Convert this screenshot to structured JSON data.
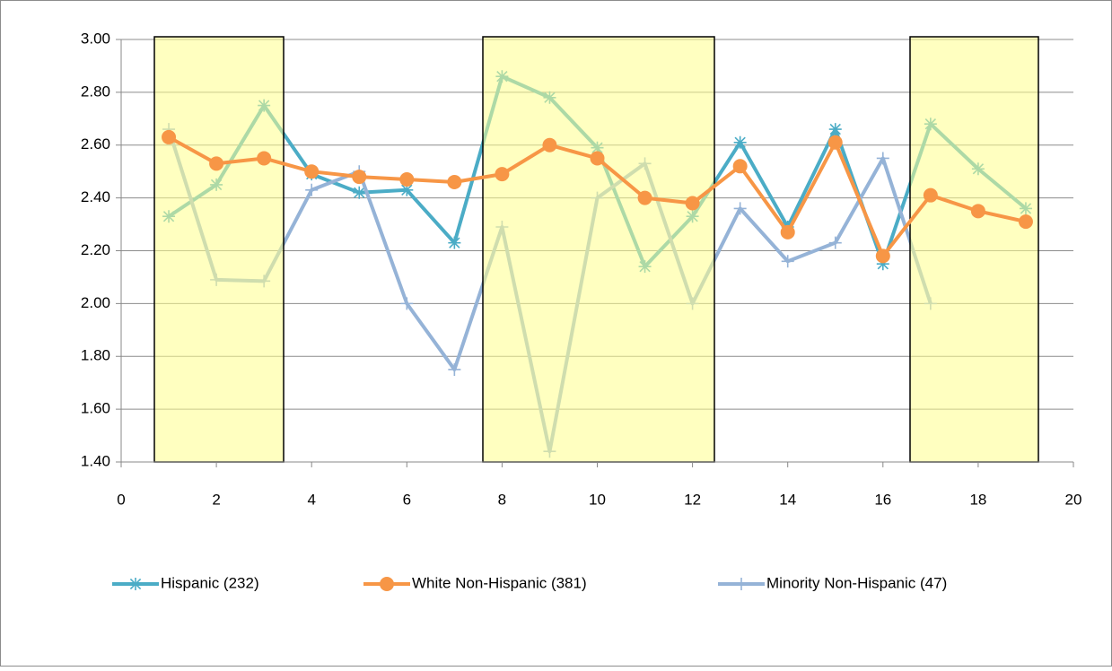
{
  "chart_data": {
    "type": "line",
    "x": [
      1,
      2,
      3,
      4,
      5,
      6,
      7,
      8,
      9,
      10,
      11,
      12,
      13,
      14,
      15,
      16,
      17,
      18,
      19
    ],
    "series": [
      {
        "name": "Hispanic (232)",
        "color": "#4bacc6",
        "marker": "asterisk",
        "values": [
          2.33,
          2.45,
          2.75,
          2.49,
          2.42,
          2.43,
          2.23,
          2.86,
          2.78,
          2.59,
          2.14,
          2.33,
          2.61,
          2.29,
          2.66,
          2.15,
          2.68,
          2.51,
          2.36
        ]
      },
      {
        "name": "White Non-Hispanic (381)",
        "color": "#f79646",
        "marker": "circle",
        "values": [
          2.63,
          2.53,
          2.55,
          2.5,
          2.48,
          2.47,
          2.46,
          2.49,
          2.6,
          2.55,
          2.4,
          2.38,
          2.52,
          2.27,
          2.61,
          2.18,
          2.41,
          2.35,
          2.31
        ]
      },
      {
        "name": "Minority Non-Hispanic (47)",
        "color": "#95b3d7",
        "marker": "plus",
        "values": [
          2.66,
          2.09,
          2.085,
          2.43,
          2.5,
          2.0,
          1.75,
          2.29,
          1.44,
          2.4,
          2.53,
          2.0,
          2.36,
          2.16,
          2.23,
          2.55,
          2.0,
          null,
          null
        ]
      }
    ],
    "xlim": [
      0,
      20
    ],
    "xticks": [
      0,
      2,
      4,
      6,
      8,
      10,
      12,
      14,
      16,
      18,
      20
    ],
    "ylim": [
      1.4,
      3.0
    ],
    "yticks": [
      {
        "value": 1.4,
        "label": "1.40"
      },
      {
        "value": 1.6,
        "label": "1.60"
      },
      {
        "value": 1.8,
        "label": "1.80"
      },
      {
        "value": 2.0,
        "label": "2.00"
      },
      {
        "value": 2.2,
        "label": "2.20"
      },
      {
        "value": 2.4,
        "label": "2.40"
      },
      {
        "value": 2.6,
        "label": "2.60"
      },
      {
        "value": 2.8,
        "label": "2.80"
      },
      {
        "value": 3.0,
        "label": "3.00"
      }
    ],
    "grid": true,
    "legend": "bottom"
  }
}
